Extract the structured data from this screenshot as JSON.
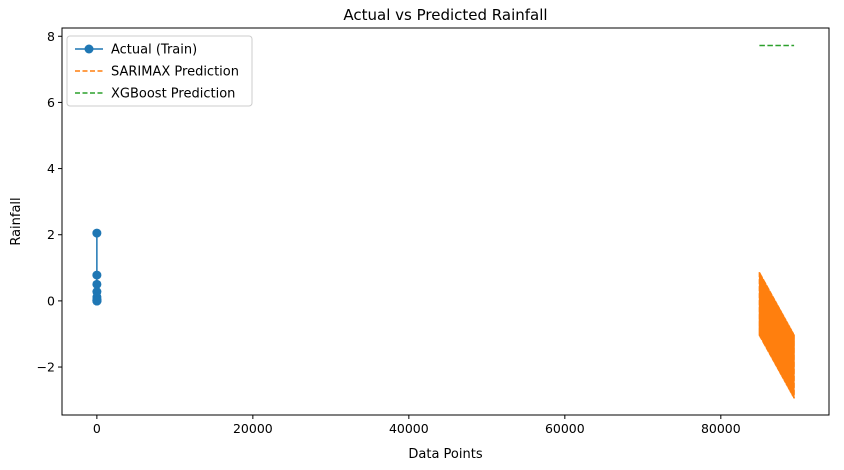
{
  "chart_data": {
    "type": "line",
    "title": "Actual vs Predicted Rainfall",
    "xlabel": "Data Points",
    "ylabel": "Rainfall",
    "xlim": [
      -4470,
      93870
    ],
    "ylim": [
      -3.45,
      8.25
    ],
    "xticks": [
      0,
      20000,
      40000,
      60000,
      80000
    ],
    "yticks": [
      -2,
      0,
      2,
      4,
      6,
      8
    ],
    "xtick_labels": [
      "0",
      "20000",
      "40000",
      "60000",
      "80000"
    ],
    "ytick_labels": [
      "−2",
      "0",
      "2",
      "4",
      "6",
      "8"
    ],
    "grid": false,
    "legend_position": "top-left",
    "series": [
      {
        "name": "Actual (Train)",
        "style": "line-marker",
        "color": "#1f77b4",
        "x": [
          0,
          1,
          2,
          3,
          4,
          5,
          6,
          7,
          8,
          9,
          10,
          11
        ],
        "y": [
          0.0,
          2.05,
          0.78,
          0.5,
          0.28,
          0.12,
          0.05,
          0.02,
          0.0,
          0.0,
          0.01,
          0.0
        ]
      },
      {
        "name": "SARIMAX Prediction",
        "style": "dashed",
        "color": "#ff7f0e",
        "x_start": 84946,
        "x_end": 89394,
        "upper_start": 0.87,
        "upper_end": -1.02,
        "lower_start": -1.05,
        "lower_end": -2.95
      },
      {
        "name": "XGBoost Prediction",
        "style": "dashed",
        "color": "#2ca02c",
        "x": [
          84946,
          89394
        ],
        "y": [
          7.72,
          7.72
        ]
      }
    ]
  }
}
